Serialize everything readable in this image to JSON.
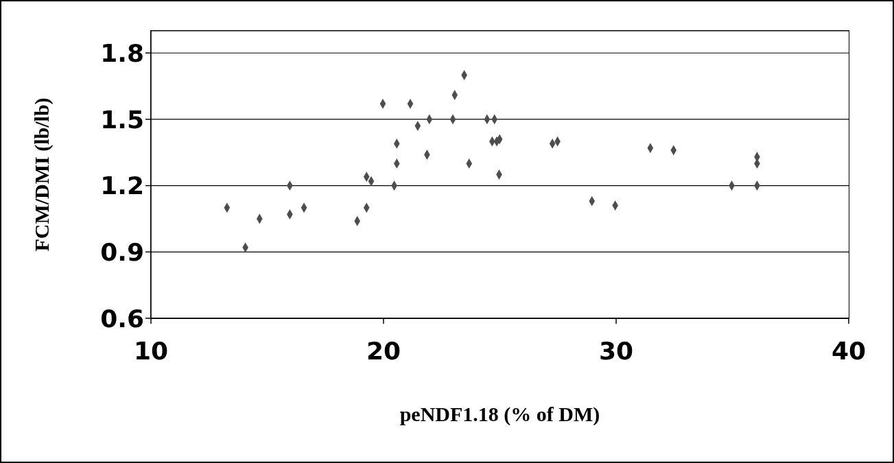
{
  "chart_data": {
    "type": "scatter",
    "xlabel": "peNDF1.18 (% of DM)",
    "ylabel": "FCM/DMI (lb/lb)",
    "xlim": [
      10,
      40
    ],
    "ylim": [
      0.6,
      1.9
    ],
    "xticks": [
      10,
      20,
      30,
      40
    ],
    "yticks": [
      0.6,
      0.9,
      1.2,
      1.5,
      1.8
    ],
    "grid": "y",
    "marker": "diamond",
    "legend": false,
    "series": [
      {
        "color": "#4d4d4d",
        "x": [
          13.27,
          14.06,
          14.67,
          15.97,
          15.97,
          16.58,
          18.87,
          19.27,
          19.47,
          19.27,
          19.97,
          20.46,
          20.57,
          20.57,
          21.15,
          21.47,
          21.97,
          21.87,
          22.98,
          23.06,
          23.47,
          23.68,
          24.45,
          24.77,
          24.67,
          24.87,
          24.99,
          24.97,
          27.26,
          27.48,
          28.96,
          29.96,
          31.47,
          32.47,
          34.97,
          36.06,
          36.06,
          36.06
        ],
        "values": [
          1.1,
          0.92,
          1.05,
          1.2,
          1.07,
          1.1,
          1.04,
          1.24,
          1.22,
          1.1,
          1.57,
          1.2,
          1.3,
          1.39,
          1.57,
          1.47,
          1.5,
          1.34,
          1.5,
          1.61,
          1.7,
          1.3,
          1.5,
          1.5,
          1.4,
          1.4,
          1.41,
          1.25,
          1.39,
          1.4,
          1.13,
          1.11,
          1.37,
          1.36,
          1.2,
          1.2,
          1.3,
          1.33
        ]
      }
    ]
  }
}
